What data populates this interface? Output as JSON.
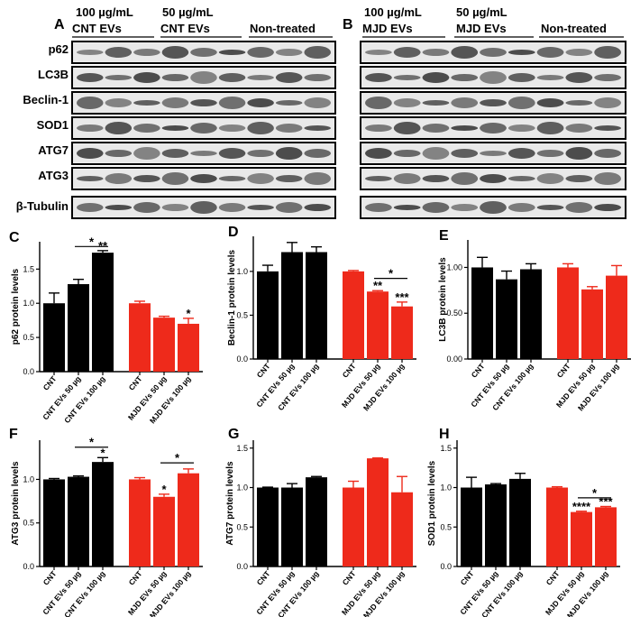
{
  "colors": {
    "control": "#000000",
    "mjd": "#ee2a1b",
    "blot_band": "#303030",
    "blot_bg": "#e9e9e9"
  },
  "blots": {
    "panel_a": {
      "letter": "A",
      "group_labels": [
        {
          "line1": "100 µg/mL",
          "line2": "CNT EVs"
        },
        {
          "line1": "50 µg/mL",
          "line2": "CNT EVs"
        },
        {
          "line1": "",
          "line2": "Non-treated"
        }
      ]
    },
    "panel_b": {
      "letter": "B",
      "group_labels": [
        {
          "line1": "100 µg/mL",
          "line2": "MJD EVs"
        },
        {
          "line1": "50 µg/mL",
          "line2": "MJD EVs"
        },
        {
          "line1": "",
          "line2": "Non-treated"
        }
      ]
    },
    "rows": [
      "p62",
      "LC3B",
      "Beclin-1",
      "SOD1",
      "ATG7",
      "ATG3",
      "β-Tubulin"
    ]
  },
  "chart_data": [
    {
      "letter": "C",
      "type": "bar",
      "ylabel": "p62 protein levels",
      "yticks": [
        "0.0",
        "0.5",
        "1.0",
        "1.5"
      ],
      "ylim": [
        0,
        1.9
      ],
      "categories": [
        "CNT",
        "CNT EVs 50 µg",
        "CNT EVs 100 µg",
        "CNT",
        "MJD EVs 50 µg",
        "MJD EVs 100 µg"
      ],
      "values": [
        1.0,
        1.28,
        1.74,
        1.0,
        0.79,
        0.7
      ],
      "errors": [
        0.15,
        0.07,
        0.03,
        0.03,
        0.02,
        0.08
      ],
      "bar_stars": [
        "",
        "",
        "**",
        "",
        "",
        "*"
      ],
      "brackets": [
        {
          "from": 1,
          "to": 2,
          "y": 1.83,
          "label": "*"
        }
      ]
    },
    {
      "letter": "D",
      "type": "bar",
      "ylabel": "Beclin-1 protein levels",
      "yticks": [
        "0.0",
        "0.5",
        "1.0"
      ],
      "ylim": [
        0,
        1.4
      ],
      "categories": [
        "CNT",
        "CNT EVs 50 µg",
        "CNT EVs 100 µg",
        "CNT",
        "MJD EVs 50 µg",
        "MJD EVs 100 µg"
      ],
      "values": [
        1.0,
        1.22,
        1.22,
        1.0,
        0.77,
        0.6
      ],
      "errors": [
        0.07,
        0.11,
        0.06,
        0.01,
        0.01,
        0.05
      ],
      "bar_stars": [
        "",
        "",
        "",
        "",
        "**",
        "***"
      ],
      "brackets": [
        {
          "from": 4,
          "to": 5,
          "y": 0.92,
          "label": "*"
        }
      ]
    },
    {
      "letter": "E",
      "type": "bar",
      "ylabel": "LC3B protein levels",
      "yticks": [
        "0.00",
        "0.50",
        "1.00"
      ],
      "ylim": [
        0,
        1.3
      ],
      "categories": [
        "CNT",
        "CNT EVs 50 µg",
        "CNT EVs 100 µg",
        "CNT",
        "MJD EVs 50 µg",
        "MJD EVs 100 µg"
      ],
      "values": [
        1.0,
        0.87,
        0.98,
        1.0,
        0.76,
        0.91
      ],
      "errors": [
        0.11,
        0.09,
        0.06,
        0.04,
        0.03,
        0.11
      ],
      "bar_stars": [
        "",
        "",
        "",
        "",
        "",
        ""
      ],
      "brackets": []
    },
    {
      "letter": "F",
      "type": "bar",
      "ylabel": "ATG3 protein levels",
      "yticks": [
        "0.0",
        "0.5",
        "1.0"
      ],
      "ylim": [
        0,
        1.45
      ],
      "categories": [
        "CNT",
        "CNT EVs 50 µg",
        "CNT EVs 100 µg",
        "CNT",
        "MJD EVs 50 µg",
        "MJD EVs 100 µg"
      ],
      "values": [
        1.0,
        1.03,
        1.2,
        1.0,
        0.8,
        1.07
      ],
      "errors": [
        0.01,
        0.01,
        0.05,
        0.02,
        0.03,
        0.05
      ],
      "bar_stars": [
        "",
        "",
        "*",
        "",
        "*",
        ""
      ],
      "brackets": [
        {
          "from": 1,
          "to": 2,
          "y": 1.37,
          "label": "*"
        },
        {
          "from": 4,
          "to": 5,
          "y": 1.19,
          "label": "*"
        }
      ]
    },
    {
      "letter": "G",
      "type": "bar",
      "ylabel": "ATG7 protein levels",
      "yticks": [
        "0.0",
        "0.5",
        "1.0",
        "1.5"
      ],
      "ylim": [
        0,
        1.6
      ],
      "categories": [
        "CNT",
        "CNT EVs 50 µg",
        "CNT EVs 100 µg",
        "CNT",
        "MJD EVs 50 µg",
        "MJD EVs 100 µg"
      ],
      "values": [
        1.0,
        1.0,
        1.13,
        1.0,
        1.37,
        0.94
      ],
      "errors": [
        0.005,
        0.05,
        0.01,
        0.08,
        0.005,
        0.2
      ],
      "bar_stars": [
        "",
        "",
        "",
        "",
        "",
        ""
      ],
      "brackets": []
    },
    {
      "letter": "H",
      "type": "bar",
      "ylabel": "SOD1 protein levels",
      "yticks": [
        "0.0",
        "0.5",
        "1.0",
        "1.5"
      ],
      "ylim": [
        0,
        1.6
      ],
      "categories": [
        "CNT",
        "CNT EVs 50 µg",
        "CNT EVs 100 µg",
        "CNT",
        "MJD EVs 50 µg",
        "MJD EVs 100 µg"
      ],
      "values": [
        1.0,
        1.04,
        1.11,
        1.0,
        0.69,
        0.75
      ],
      "errors": [
        0.13,
        0.01,
        0.07,
        0.01,
        0.01,
        0.01
      ],
      "bar_stars": [
        "",
        "",
        "",
        "",
        "****",
        "***"
      ],
      "brackets": [
        {
          "from": 4,
          "to": 5,
          "y": 0.87,
          "label": "*"
        }
      ]
    }
  ]
}
